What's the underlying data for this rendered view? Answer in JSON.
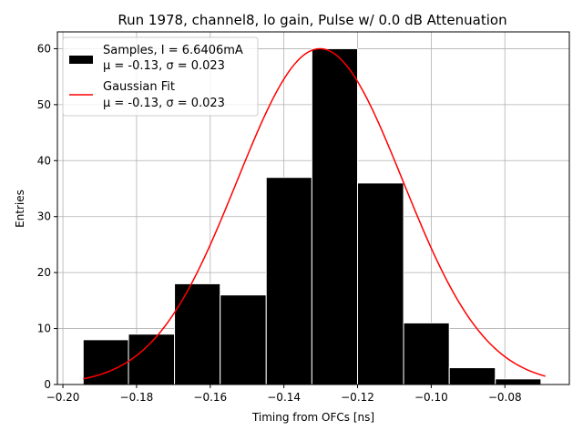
{
  "chart_data": {
    "type": "bar",
    "title": "Run 1978, channel8, lo gain, Pulse w/ 0.0 dB Attenuation",
    "xlabel": "Timing from OFCs [ns]",
    "ylabel": "Entries",
    "xlim": [
      -0.2015,
      -0.0625
    ],
    "ylim": [
      0,
      63
    ],
    "grid": true,
    "legend_position": "top-left",
    "xticks": [
      -0.2,
      -0.18,
      -0.16,
      -0.14,
      -0.12,
      -0.1,
      -0.08
    ],
    "xtick_labels": [
      "−0.20",
      "−0.18",
      "−0.16",
      "−0.14",
      "−0.12",
      "−0.10",
      "−0.08"
    ],
    "yticks": [
      0,
      10,
      20,
      30,
      40,
      50,
      60
    ],
    "ytick_labels": [
      "0",
      "10",
      "20",
      "30",
      "40",
      "50",
      "60"
    ],
    "histogram": {
      "name": "Samples, I = 6.6406mA",
      "stats": "μ = -0.13, σ = 0.023",
      "color": "#000000",
      "edgecolor": "#ffffff",
      "bin_edges": [
        -0.1945,
        -0.1822,
        -0.1697,
        -0.1573,
        -0.1448,
        -0.1324,
        -0.12,
        -0.1075,
        -0.0951,
        -0.0826,
        -0.0702
      ],
      "counts": [
        8,
        9,
        18,
        16,
        37,
        60,
        36,
        11,
        3,
        1
      ]
    },
    "fit": {
      "name": "Gaussian Fit",
      "stats": "μ = -0.13, σ = 0.023",
      "color": "#ff0000",
      "mu": -0.1302,
      "sigma": 0.0225,
      "amplitude": 60.0,
      "x_range": [
        -0.1945,
        -0.069
      ]
    }
  }
}
